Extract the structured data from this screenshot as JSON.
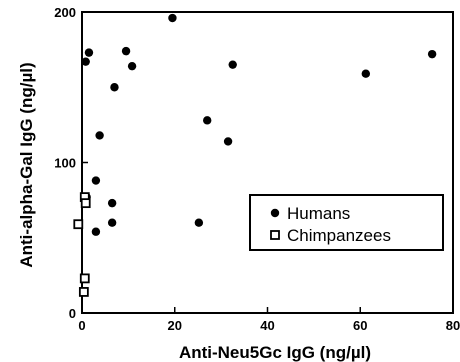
{
  "chart_data": {
    "type": "scatter",
    "xlabel": "Anti-Neu5Gc IgG (ng/µl)",
    "ylabel": "Anti-alpha-Gal IgG (ng/µl)",
    "xlim": [
      0,
      80
    ],
    "ylim": [
      0,
      200
    ],
    "xticks": [
      0,
      20,
      40,
      60,
      80
    ],
    "yticks": [
      0,
      100,
      200
    ],
    "grid": false,
    "legend_position": "right-middle",
    "series": [
      {
        "name": "Humans",
        "marker": "filled-circle",
        "color": "#000000",
        "points": [
          [
            19.5,
            196
          ],
          [
            1.5,
            173
          ],
          [
            9.5,
            174
          ],
          [
            75.5,
            172
          ],
          [
            0.8,
            167
          ],
          [
            10.8,
            164
          ],
          [
            32.5,
            165
          ],
          [
            61.2,
            159
          ],
          [
            7.0,
            150
          ],
          [
            27.0,
            128
          ],
          [
            3.8,
            118
          ],
          [
            31.5,
            114
          ],
          [
            3.0,
            88
          ],
          [
            1.0,
            77
          ],
          [
            6.5,
            73
          ],
          [
            6.5,
            60
          ],
          [
            3.0,
            54
          ],
          [
            25.2,
            60
          ]
        ]
      },
      {
        "name": "Chimpanzees",
        "marker": "open-square",
        "color": "#000000",
        "points": [
          [
            0.6,
            77
          ],
          [
            0.8,
            73
          ],
          [
            -0.8,
            59
          ],
          [
            0.6,
            23
          ],
          [
            0.4,
            14
          ]
        ]
      }
    ]
  }
}
